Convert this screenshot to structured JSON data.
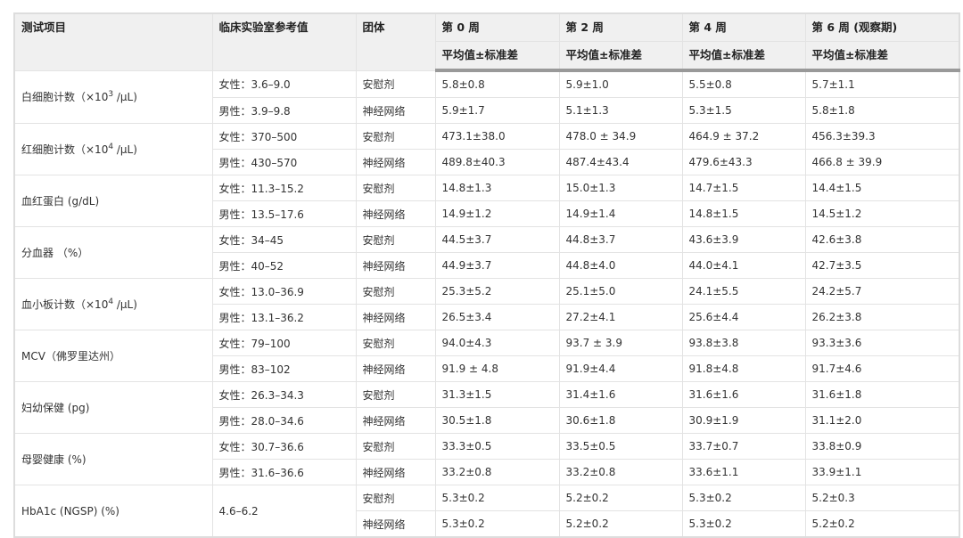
{
  "headers": {
    "item": "测试项目",
    "ref": "临床实验室参考值",
    "group": "团体",
    "w0": "第 0 周",
    "w2": "第 2 周",
    "w4": "第 4 周",
    "w6": "第 6 周 (观察期)",
    "sub": "平均值±标准差"
  },
  "rows": [
    {
      "item": "白细胞计数（×10",
      "sup": "3",
      "unit": " /μL)",
      "ref": [
        "女性：3.6–9.0",
        "男性：3.9–9.8"
      ],
      "vals": [
        [
          "安慰剂",
          "5.8±0.8",
          "5.9±1.0",
          "5.5±0.8",
          "5.7±1.1"
        ],
        [
          "神经网络",
          "5.9±1.7",
          "5.1±1.3",
          "5.3±1.5",
          "5.8±1.8"
        ]
      ]
    },
    {
      "item": "红细胞计数（×10",
      "sup": "4",
      "unit": " /μL)",
      "ref": [
        "女性：370–500",
        "男性：430–570"
      ],
      "vals": [
        [
          "安慰剂",
          "473.1±38.0",
          "478.0 ± 34.9",
          "464.9 ± 37.2",
          "456.3±39.3"
        ],
        [
          "神经网络",
          "489.8±40.3",
          "487.4±43.4",
          "479.6±43.3",
          "466.8 ± 39.9"
        ]
      ]
    },
    {
      "item": "血红蛋白 (g/dL)",
      "ref": [
        "女性：11.3–15.2",
        "男性：13.5–17.6"
      ],
      "vals": [
        [
          "安慰剂",
          "14.8±1.3",
          "15.0±1.3",
          "14.7±1.5",
          "14.4±1.5"
        ],
        [
          "神经网络",
          "14.9±1.2",
          "14.9±1.4",
          "14.8±1.5",
          "14.5±1.2"
        ]
      ]
    },
    {
      "item": "分血器 （%）",
      "ref": [
        "女性：34–45",
        "男性：40–52"
      ],
      "vals": [
        [
          "安慰剂",
          "44.5±3.7",
          "44.8±3.7",
          "43.6±3.9",
          "42.6±3.8"
        ],
        [
          "神经网络",
          "44.9±3.7",
          "44.8±4.0",
          "44.0±4.1",
          "42.7±3.5"
        ]
      ]
    },
    {
      "item": "血小板计数（×10",
      "sup": "4",
      "unit": " /μL)",
      "ref": [
        "女性：13.0–36.9",
        "男性：13.1–36.2"
      ],
      "vals": [
        [
          "安慰剂",
          "25.3±5.2",
          "25.1±5.0",
          "24.1±5.5",
          "24.2±5.7"
        ],
        [
          "神经网络",
          "26.5±3.4",
          "27.2±4.1",
          "25.6±4.4",
          "26.2±3.8"
        ]
      ]
    },
    {
      "item": "MCV（佛罗里达州）",
      "ref": [
        "女性：79–100",
        "男性：83–102"
      ],
      "vals": [
        [
          "安慰剂",
          "94.0±4.3",
          "93.7 ± 3.9",
          "93.8±3.8",
          "93.3±3.6"
        ],
        [
          "神经网络",
          "91.9 ± 4.8",
          "91.9±4.4",
          "91.8±4.8",
          "91.7±4.6"
        ]
      ]
    },
    {
      "item": "妇幼保健 (pg)",
      "ref": [
        "女性：26.3–34.3",
        "男性：28.0–34.6"
      ],
      "vals": [
        [
          "安慰剂",
          "31.3±1.5",
          "31.4±1.6",
          "31.6±1.6",
          "31.6±1.8"
        ],
        [
          "神经网络",
          "30.5±1.8",
          "30.6±1.8",
          "30.9±1.9",
          "31.1±2.0"
        ]
      ]
    },
    {
      "item": "母婴健康 (%)",
      "ref": [
        "女性：30.7–36.6",
        "男性：31.6–36.6"
      ],
      "vals": [
        [
          "安慰剂",
          "33.3±0.5",
          "33.5±0.5",
          "33.7±0.7",
          "33.8±0.9"
        ],
        [
          "神经网络",
          "33.2±0.8",
          "33.2±0.8",
          "33.6±1.1",
          "33.9±1.1"
        ]
      ]
    },
    {
      "item": "HbA1c (NGSP) (%)",
      "ref": [
        "4.6–6.2"
      ],
      "vals": [
        [
          "安慰剂",
          "5.3±0.2",
          "5.2±0.2",
          "5.3±0.2",
          "5.2±0.3"
        ],
        [
          "神经网络",
          "5.3±0.2",
          "5.2±0.2",
          "5.3±0.2",
          "5.2±0.2"
        ]
      ]
    }
  ]
}
